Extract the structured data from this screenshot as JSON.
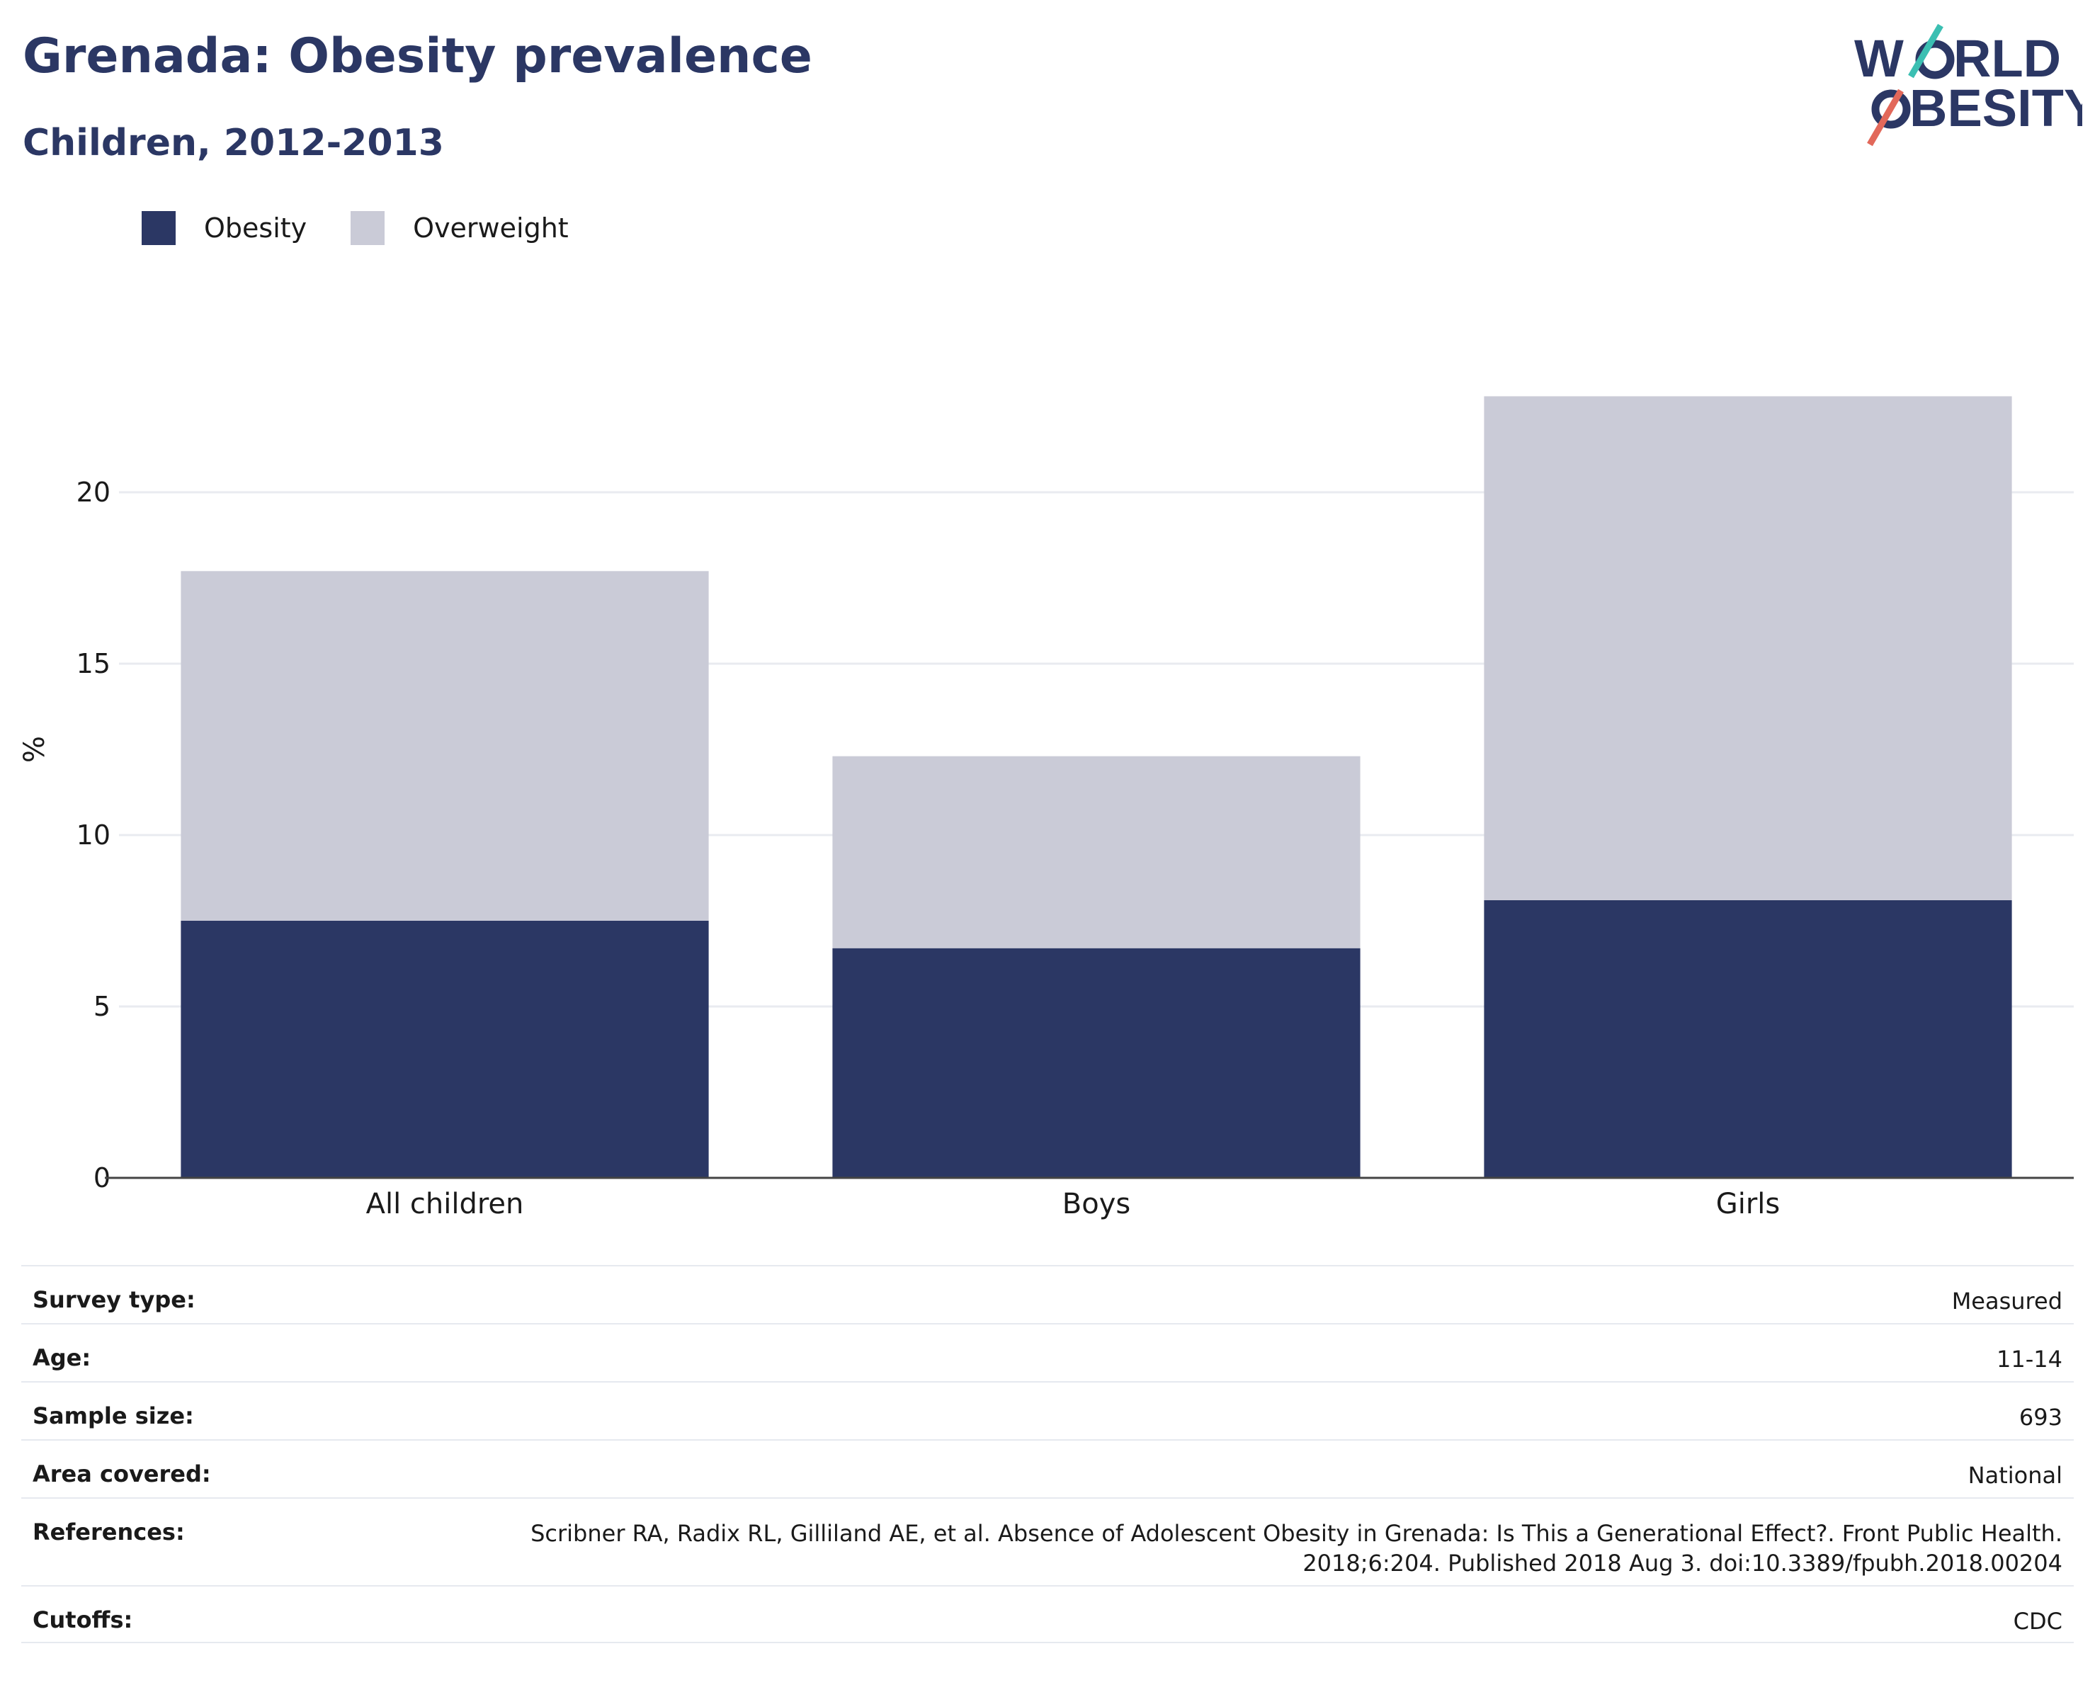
{
  "header": {
    "title": "Grenada: Obesity prevalence",
    "subtitle": "Children, 2012-2013"
  },
  "logo": {
    "line1": "W RLD",
    "line2": "BESITY",
    "accent_top": "#3bbfb2",
    "accent_bottom": "#e2685a"
  },
  "legend": {
    "obesity_label": "Obesity",
    "overweight_label": "Overweight",
    "obesity_color": "#2b3764",
    "overweight_color": "#cacbd7"
  },
  "chart_data": {
    "type": "bar",
    "stacked": true,
    "categories": [
      "All children",
      "Boys",
      "Girls"
    ],
    "series": [
      {
        "name": "Obesity",
        "values": [
          7.5,
          6.7,
          8.1
        ],
        "color": "#2b3764"
      },
      {
        "name": "Overweight",
        "values": [
          10.2,
          5.6,
          14.7
        ],
        "color": "#cacbd7"
      }
    ],
    "ylabel": "%",
    "ylim": [
      0,
      25
    ],
    "yticks": [
      0,
      5,
      10,
      15,
      20
    ],
    "grid": true,
    "legend_position": "top-left"
  },
  "metadata": [
    {
      "label": "Survey type:",
      "value": "Measured"
    },
    {
      "label": "Age:",
      "value": "11-14"
    },
    {
      "label": "Sample size:",
      "value": "693"
    },
    {
      "label": "Area covered:",
      "value": "National"
    },
    {
      "label": "References:",
      "value": "Scribner RA, Radix RL, Gilliland AE, et al. Absence of Adolescent Obesity in Grenada: Is This a Generational Effect?. Front Public Health. 2018;6:204. Published 2018 Aug 3. doi:10.3389/fpubh.2018.00204"
    },
    {
      "label": "Cutoffs:",
      "value": "CDC"
    }
  ]
}
